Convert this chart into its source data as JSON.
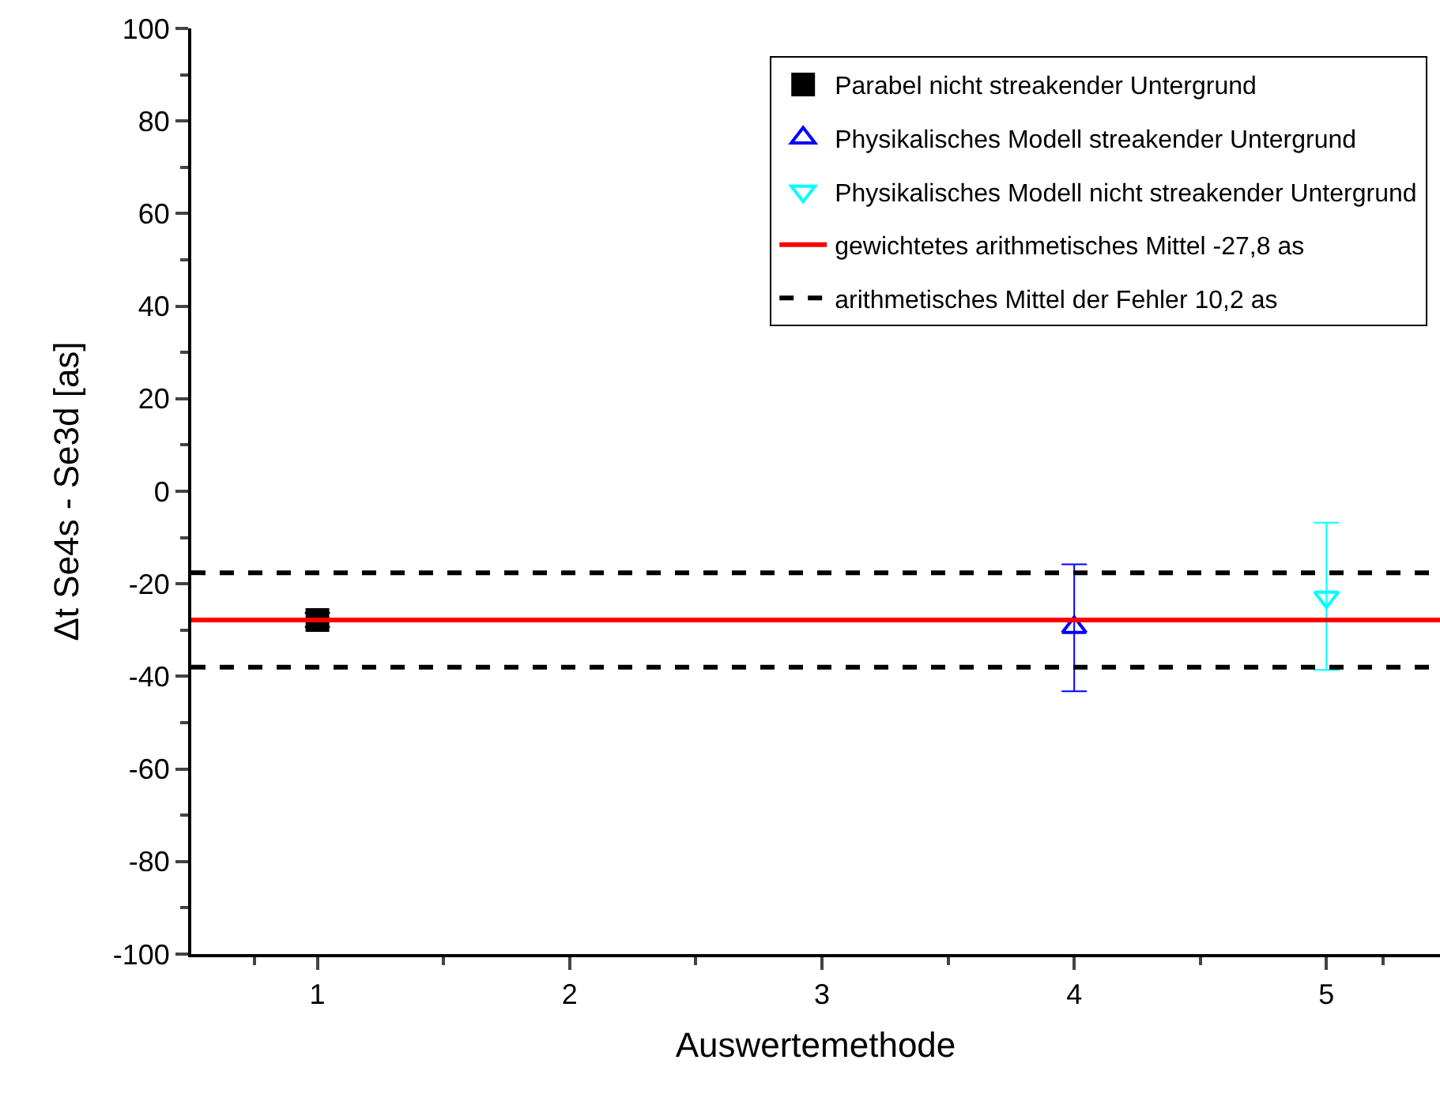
{
  "chart_data": {
    "type": "scatter",
    "xlabel": "Auswertemethode",
    "ylabel": "Δt Se4s - Se3d [as]",
    "xlim": [
      0.5,
      5.45
    ],
    "xticks": [
      1,
      2,
      3,
      4,
      5
    ],
    "ylim": [
      -100,
      100
    ],
    "yticks": [
      -100,
      -80,
      -60,
      -40,
      -20,
      0,
      20,
      40,
      60,
      80,
      100
    ],
    "series": [
      {
        "name": "Parabel nicht streakender Untergrund",
        "color": "#000000",
        "marker": "square",
        "x": [
          1
        ],
        "values": [
          -27.8
        ],
        "errors": [
          1.5
        ]
      },
      {
        "name": "Physikalisches Modell streakender Untergrund",
        "color": "#0000ff",
        "marker": "triangle-up",
        "x": [
          4
        ],
        "values": [
          -29.4
        ],
        "errors": [
          [
            -43.2,
            -15.8
          ]
        ]
      },
      {
        "name": "Physikalisches Modell nicht streakender Untergrund",
        "color": "#00ffff",
        "marker": "triangle-down",
        "x": [
          5
        ],
        "values": [
          -22.9
        ],
        "errors": [
          [
            -38.6,
            -6.8
          ]
        ]
      }
    ],
    "ref_lines": [
      {
        "axis": "y",
        "value": -27.8,
        "label": "gewichtetes arithmetisches Mittel -27,8 as",
        "color": "#ff0000",
        "line_style": "solid"
      },
      {
        "axis": "y",
        "value": -17.6,
        "label": "arithmetisches Mittel der Fehler 10,2 as",
        "color": "#000000",
        "line_style": "dashed"
      },
      {
        "axis": "y",
        "value": -38.0,
        "label": null,
        "color": "#000000",
        "line_style": "dashed"
      }
    ],
    "legend": "top right"
  }
}
